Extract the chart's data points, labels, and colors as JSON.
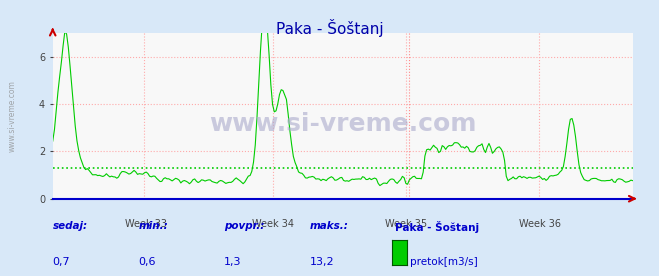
{
  "title": "Paka - Šoštanj",
  "bg_color": "#d8e8f8",
  "plot_bg_color": "#f8f8f8",
  "line_color": "#00cc00",
  "avg_line_color": "#00cc00",
  "avg_value": 1.3,
  "x_axis_color": "#0000cc",
  "x_tick_labels": [
    "Week 33",
    "Week 34",
    "Week 35",
    "Week 36"
  ],
  "x_tick_positions": [
    0.16,
    0.38,
    0.61,
    0.84
  ],
  "y_ticks": [
    0,
    2,
    4,
    6
  ],
  "y_max": 7.0,
  "y_min": 0.0,
  "grid_color": "#ffaaaa",
  "watermark": "www.si-vreme.com",
  "sidebar_text": "www.si-vreme.com",
  "legend_label": "pretok[m3/s]",
  "legend_color": "#00cc00",
  "footer_labels": [
    "sedaj:",
    "min.:",
    "povpr.:",
    "maks.:"
  ],
  "footer_values": [
    "0,7",
    "0,6",
    "1,3",
    "13,2"
  ],
  "footer_series": "Paka - Šoštanj",
  "footer_color": "#0000cc",
  "n_points": 336,
  "arrow_color": "#cc0000",
  "red_vline_pos": 0.615
}
